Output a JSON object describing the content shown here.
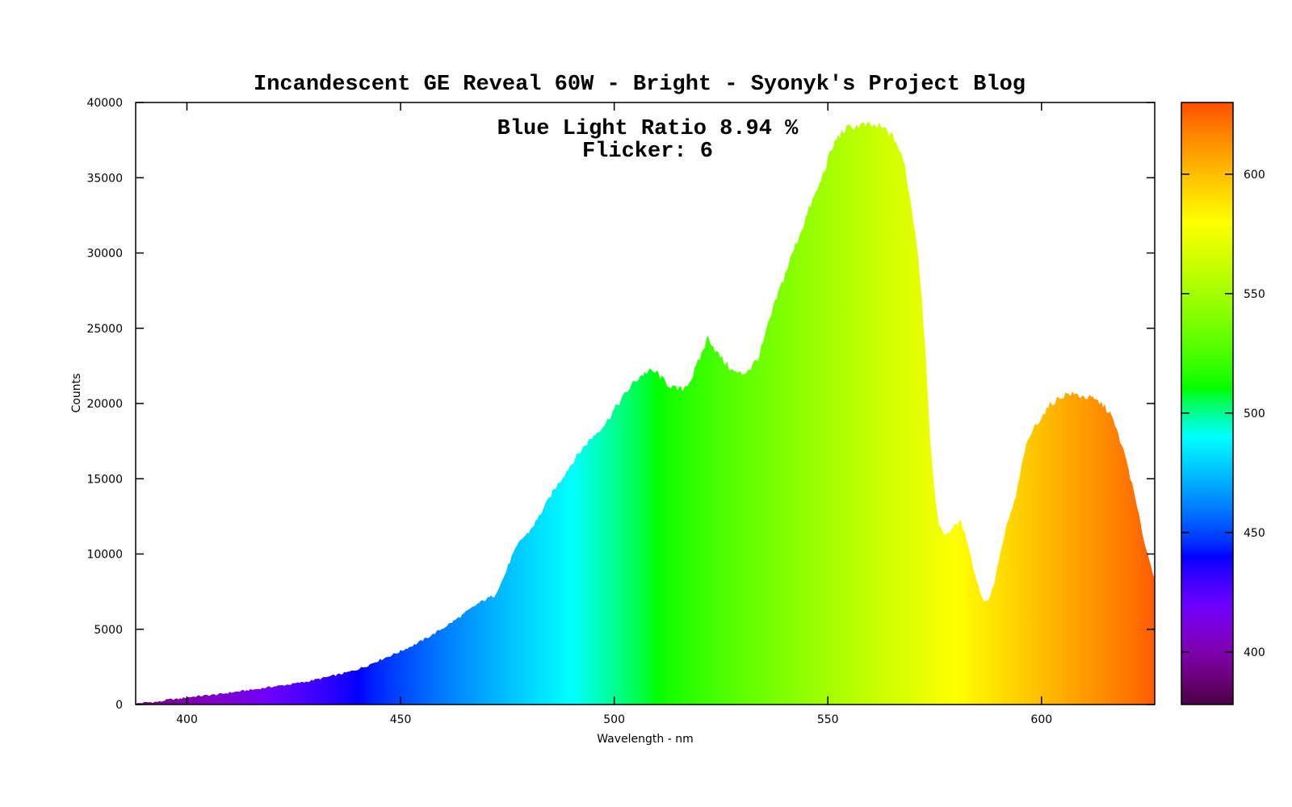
{
  "page": {
    "background": "#ffffff",
    "axis_color": "#000000"
  },
  "chart_data": {
    "type": "area",
    "title": "Incandescent GE Reveal 60W - Bright - Syonyk's Project Blog",
    "xlabel": "Wavelength - nm",
    "ylabel": "Counts",
    "xlim": [
      388,
      626.5
    ],
    "ylim": [
      0,
      40000
    ],
    "x_ticks": [
      400,
      450,
      500,
      550,
      600
    ],
    "y_ticks": [
      0,
      5000,
      10000,
      15000,
      20000,
      25000,
      30000,
      35000,
      40000
    ],
    "grid": false,
    "legend": "none",
    "fill_style": "visible-spectrum-gradient",
    "noise_amplitude": 1,
    "annotations": [
      {
        "text": "Blue Light Ratio 8.94 %"
      },
      {
        "text": "Flicker: 6"
      }
    ],
    "series": [
      {
        "name": "spectrum",
        "x": [
          388,
          390,
          392,
          394,
          395,
          396,
          398,
          400,
          402,
          404,
          406,
          408,
          410,
          412,
          414,
          416,
          418,
          420,
          422,
          424,
          426,
          428,
          430,
          432,
          434,
          436,
          438,
          440,
          442,
          444,
          446,
          448,
          450,
          452,
          454,
          456,
          458,
          460,
          462,
          464,
          466,
          468,
          470,
          472,
          474,
          476,
          478,
          480,
          482,
          484,
          486,
          488,
          490,
          492,
          494,
          496,
          498,
          500,
          502,
          504,
          506,
          508,
          510,
          512,
          514,
          516,
          518,
          520,
          522,
          524,
          526,
          528,
          530,
          532,
          534,
          536,
          538,
          540,
          542,
          544,
          546,
          548,
          550,
          552,
          554,
          556,
          558,
          560,
          562,
          564,
          566,
          568,
          570,
          571,
          572,
          573,
          574,
          575,
          576,
          577,
          578,
          579,
          580,
          581,
          582,
          583,
          584,
          585,
          586,
          587,
          588,
          589,
          590,
          591,
          592,
          594,
          596,
          598,
          600,
          602,
          604,
          606,
          608,
          610,
          612,
          614,
          616,
          618,
          620,
          622,
          624,
          626,
          626.5
        ],
        "y": [
          60,
          130,
          160,
          200,
          300,
          340,
          370,
          480,
          540,
          590,
          640,
          700,
          790,
          860,
          940,
          1010,
          1100,
          1190,
          1260,
          1340,
          1430,
          1520,
          1650,
          1770,
          1900,
          2030,
          2170,
          2350,
          2560,
          2830,
          3060,
          3290,
          3540,
          3810,
          4080,
          4400,
          4730,
          5090,
          5460,
          5850,
          6260,
          6680,
          7000,
          7250,
          8350,
          9800,
          10900,
          11450,
          12300,
          13300,
          14300,
          15150,
          16000,
          16800,
          17500,
          18100,
          18700,
          19600,
          20400,
          21200,
          21800,
          22150,
          22050,
          21400,
          21000,
          20950,
          21600,
          23000,
          24450,
          23400,
          22700,
          22100,
          21950,
          22400,
          23200,
          25200,
          27000,
          28600,
          30200,
          31700,
          33200,
          34500,
          36200,
          37600,
          38200,
          38400,
          38500,
          38450,
          38400,
          38100,
          37400,
          35800,
          32300,
          30300,
          27000,
          22700,
          17500,
          13800,
          12100,
          11300,
          11400,
          11650,
          11950,
          12200,
          11400,
          10500,
          9100,
          8100,
          7200,
          6750,
          7250,
          8100,
          9600,
          10800,
          12000,
          13800,
          16800,
          18300,
          19100,
          19900,
          20350,
          20650,
          20600,
          20450,
          20300,
          20000,
          19400,
          17900,
          16100,
          13600,
          10900,
          8800,
          8500
        ]
      }
    ],
    "colorbar": {
      "position": "right",
      "range": [
        378,
        630
      ],
      "ticks": [
        400,
        450,
        500,
        550,
        600
      ]
    }
  }
}
